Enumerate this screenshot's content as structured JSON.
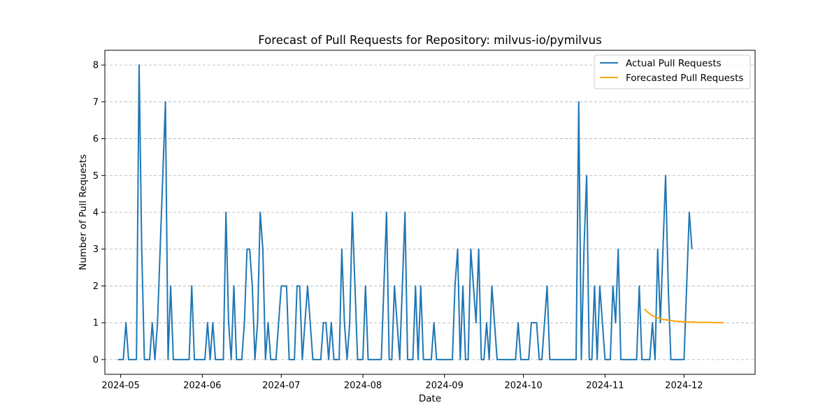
{
  "chart_data": {
    "type": "line",
    "title": "Forecast of Pull Requests for Repository: milvus-io/pymilvus",
    "xlabel": "Date",
    "ylabel": "Number of Pull Requests",
    "x_range": [
      "2024-04-25",
      "2024-12-28"
    ],
    "ylim": [
      -0.4,
      8.4
    ],
    "x_ticks": [
      "2024-05-01",
      "2024-06-01",
      "2024-07-01",
      "2024-08-01",
      "2024-09-01",
      "2024-10-01",
      "2024-11-01",
      "2024-12-01"
    ],
    "x_tick_labels": [
      "2024-05",
      "2024-06",
      "2024-07",
      "2024-08",
      "2024-09",
      "2024-10",
      "2024-11",
      "2024-12"
    ],
    "y_ticks": [
      0,
      1,
      2,
      3,
      4,
      5,
      6,
      7,
      8
    ],
    "grid": "y-dashed",
    "legend_position": "top-right",
    "series": [
      {
        "name": "Actual Pull Requests",
        "color": "#1f77b4",
        "points": [
          [
            "2024-04-30",
            0
          ],
          [
            "2024-05-01",
            0
          ],
          [
            "2024-05-02",
            0
          ],
          [
            "2024-05-03",
            1
          ],
          [
            "2024-05-04",
            0
          ],
          [
            "2024-05-05",
            0
          ],
          [
            "2024-05-06",
            0
          ],
          [
            "2024-05-07",
            0
          ],
          [
            "2024-05-08",
            8
          ],
          [
            "2024-05-09",
            3
          ],
          [
            "2024-05-10",
            0
          ],
          [
            "2024-05-11",
            0
          ],
          [
            "2024-05-12",
            0
          ],
          [
            "2024-05-13",
            1
          ],
          [
            "2024-05-14",
            0
          ],
          [
            "2024-05-15",
            1
          ],
          [
            "2024-05-16",
            3
          ],
          [
            "2024-05-17",
            5
          ],
          [
            "2024-05-18",
            7
          ],
          [
            "2024-05-19",
            0
          ],
          [
            "2024-05-20",
            2
          ],
          [
            "2024-05-21",
            0
          ],
          [
            "2024-05-22",
            0
          ],
          [
            "2024-05-23",
            0
          ],
          [
            "2024-05-24",
            0
          ],
          [
            "2024-05-25",
            0
          ],
          [
            "2024-05-26",
            0
          ],
          [
            "2024-05-27",
            0
          ],
          [
            "2024-05-28",
            2
          ],
          [
            "2024-05-29",
            0
          ],
          [
            "2024-05-30",
            0
          ],
          [
            "2024-05-31",
            0
          ],
          [
            "2024-06-01",
            0
          ],
          [
            "2024-06-02",
            0
          ],
          [
            "2024-06-03",
            1
          ],
          [
            "2024-06-04",
            0
          ],
          [
            "2024-06-05",
            1
          ],
          [
            "2024-06-06",
            0
          ],
          [
            "2024-06-07",
            0
          ],
          [
            "2024-06-08",
            0
          ],
          [
            "2024-06-09",
            0
          ],
          [
            "2024-06-10",
            4
          ],
          [
            "2024-06-11",
            1
          ],
          [
            "2024-06-12",
            0
          ],
          [
            "2024-06-13",
            2
          ],
          [
            "2024-06-14",
            0
          ],
          [
            "2024-06-15",
            0
          ],
          [
            "2024-06-16",
            0
          ],
          [
            "2024-06-17",
            1
          ],
          [
            "2024-06-18",
            3
          ],
          [
            "2024-06-19",
            3
          ],
          [
            "2024-06-20",
            2
          ],
          [
            "2024-06-21",
            0
          ],
          [
            "2024-06-22",
            1
          ],
          [
            "2024-06-23",
            4
          ],
          [
            "2024-06-24",
            3
          ],
          [
            "2024-06-25",
            0
          ],
          [
            "2024-06-26",
            1
          ],
          [
            "2024-06-27",
            0
          ],
          [
            "2024-06-28",
            0
          ],
          [
            "2024-06-29",
            0
          ],
          [
            "2024-06-30",
            1
          ],
          [
            "2024-07-01",
            2
          ],
          [
            "2024-07-02",
            2
          ],
          [
            "2024-07-03",
            2
          ],
          [
            "2024-07-04",
            0
          ],
          [
            "2024-07-05",
            0
          ],
          [
            "2024-07-06",
            0
          ],
          [
            "2024-07-07",
            2
          ],
          [
            "2024-07-08",
            2
          ],
          [
            "2024-07-09",
            0
          ],
          [
            "2024-07-10",
            1
          ],
          [
            "2024-07-11",
            2
          ],
          [
            "2024-07-12",
            1
          ],
          [
            "2024-07-13",
            0
          ],
          [
            "2024-07-14",
            0
          ],
          [
            "2024-07-15",
            0
          ],
          [
            "2024-07-16",
            0
          ],
          [
            "2024-07-17",
            1
          ],
          [
            "2024-07-18",
            1
          ],
          [
            "2024-07-19",
            0
          ],
          [
            "2024-07-20",
            1
          ],
          [
            "2024-07-21",
            0
          ],
          [
            "2024-07-22",
            0
          ],
          [
            "2024-07-23",
            0
          ],
          [
            "2024-07-24",
            3
          ],
          [
            "2024-07-25",
            1
          ],
          [
            "2024-07-26",
            0
          ],
          [
            "2024-07-27",
            1
          ],
          [
            "2024-07-28",
            4
          ],
          [
            "2024-07-29",
            2
          ],
          [
            "2024-07-30",
            0
          ],
          [
            "2024-07-31",
            0
          ],
          [
            "2024-08-01",
            0
          ],
          [
            "2024-08-02",
            2
          ],
          [
            "2024-08-03",
            0
          ],
          [
            "2024-08-04",
            0
          ],
          [
            "2024-08-05",
            0
          ],
          [
            "2024-08-06",
            0
          ],
          [
            "2024-08-07",
            0
          ],
          [
            "2024-08-08",
            0
          ],
          [
            "2024-08-09",
            2
          ],
          [
            "2024-08-10",
            4
          ],
          [
            "2024-08-11",
            0
          ],
          [
            "2024-08-12",
            0
          ],
          [
            "2024-08-13",
            2
          ],
          [
            "2024-08-14",
            1
          ],
          [
            "2024-08-15",
            0
          ],
          [
            "2024-08-16",
            2
          ],
          [
            "2024-08-17",
            4
          ],
          [
            "2024-08-18",
            0
          ],
          [
            "2024-08-19",
            0
          ],
          [
            "2024-08-20",
            0
          ],
          [
            "2024-08-21",
            2
          ],
          [
            "2024-08-22",
            0
          ],
          [
            "2024-08-23",
            2
          ],
          [
            "2024-08-24",
            0
          ],
          [
            "2024-08-25",
            0
          ],
          [
            "2024-08-26",
            0
          ],
          [
            "2024-08-27",
            0
          ],
          [
            "2024-08-28",
            1
          ],
          [
            "2024-08-29",
            0
          ],
          [
            "2024-08-30",
            0
          ],
          [
            "2024-08-31",
            0
          ],
          [
            "2024-09-01",
            0
          ],
          [
            "2024-09-02",
            0
          ],
          [
            "2024-09-03",
            0
          ],
          [
            "2024-09-04",
            0
          ],
          [
            "2024-09-05",
            2
          ],
          [
            "2024-09-06",
            3
          ],
          [
            "2024-09-07",
            0
          ],
          [
            "2024-09-08",
            2
          ],
          [
            "2024-09-09",
            0
          ],
          [
            "2024-09-10",
            0
          ],
          [
            "2024-09-11",
            3
          ],
          [
            "2024-09-12",
            2
          ],
          [
            "2024-09-13",
            1
          ],
          [
            "2024-09-14",
            3
          ],
          [
            "2024-09-15",
            0
          ],
          [
            "2024-09-16",
            0
          ],
          [
            "2024-09-17",
            1
          ],
          [
            "2024-09-18",
            0
          ],
          [
            "2024-09-19",
            2
          ],
          [
            "2024-09-20",
            1
          ],
          [
            "2024-09-21",
            0
          ],
          [
            "2024-09-22",
            0
          ],
          [
            "2024-09-23",
            0
          ],
          [
            "2024-09-24",
            0
          ],
          [
            "2024-09-25",
            0
          ],
          [
            "2024-09-26",
            0
          ],
          [
            "2024-09-27",
            0
          ],
          [
            "2024-09-28",
            0
          ],
          [
            "2024-09-29",
            1
          ],
          [
            "2024-09-30",
            0
          ],
          [
            "2024-10-01",
            0
          ],
          [
            "2024-10-02",
            0
          ],
          [
            "2024-10-03",
            0
          ],
          [
            "2024-10-04",
            1
          ],
          [
            "2024-10-05",
            1
          ],
          [
            "2024-10-06",
            1
          ],
          [
            "2024-10-07",
            0
          ],
          [
            "2024-10-08",
            0
          ],
          [
            "2024-10-09",
            1
          ],
          [
            "2024-10-10",
            2
          ],
          [
            "2024-10-11",
            0
          ],
          [
            "2024-10-12",
            0
          ],
          [
            "2024-10-13",
            0
          ],
          [
            "2024-10-14",
            0
          ],
          [
            "2024-10-15",
            0
          ],
          [
            "2024-10-16",
            0
          ],
          [
            "2024-10-17",
            0
          ],
          [
            "2024-10-18",
            0
          ],
          [
            "2024-10-19",
            0
          ],
          [
            "2024-10-20",
            0
          ],
          [
            "2024-10-21",
            0
          ],
          [
            "2024-10-22",
            7
          ],
          [
            "2024-10-23",
            0
          ],
          [
            "2024-10-24",
            3
          ],
          [
            "2024-10-25",
            5
          ],
          [
            "2024-10-26",
            0
          ],
          [
            "2024-10-27",
            0
          ],
          [
            "2024-10-28",
            2
          ],
          [
            "2024-10-29",
            0
          ],
          [
            "2024-10-30",
            2
          ],
          [
            "2024-10-31",
            1
          ],
          [
            "2024-11-01",
            0
          ],
          [
            "2024-11-02",
            0
          ],
          [
            "2024-11-03",
            0
          ],
          [
            "2024-11-04",
            2
          ],
          [
            "2024-11-05",
            1
          ],
          [
            "2024-11-06",
            3
          ],
          [
            "2024-11-07",
            0
          ],
          [
            "2024-11-08",
            0
          ],
          [
            "2024-11-09",
            0
          ],
          [
            "2024-11-10",
            0
          ],
          [
            "2024-11-11",
            0
          ],
          [
            "2024-11-12",
            0
          ],
          [
            "2024-11-13",
            0
          ],
          [
            "2024-11-14",
            2
          ],
          [
            "2024-11-15",
            0
          ],
          [
            "2024-11-16",
            0
          ],
          [
            "2024-11-17",
            0
          ],
          [
            "2024-11-18",
            0
          ],
          [
            "2024-11-19",
            1
          ],
          [
            "2024-11-20",
            0
          ],
          [
            "2024-11-21",
            3
          ],
          [
            "2024-11-22",
            1
          ],
          [
            "2024-11-23",
            3
          ],
          [
            "2024-11-24",
            5
          ],
          [
            "2024-11-25",
            2
          ],
          [
            "2024-11-26",
            0
          ],
          [
            "2024-11-27",
            0
          ],
          [
            "2024-11-28",
            0
          ],
          [
            "2024-11-29",
            0
          ],
          [
            "2024-11-30",
            0
          ],
          [
            "2024-12-01",
            0
          ],
          [
            "2024-12-02",
            2
          ],
          [
            "2024-12-03",
            4
          ],
          [
            "2024-12-04",
            3
          ]
        ]
      },
      {
        "name": "Forecasted Pull Requests",
        "color": "#ffa500",
        "points": [
          [
            "2024-11-16",
            1.38
          ],
          [
            "2024-11-17",
            1.3
          ],
          [
            "2024-11-18",
            1.24
          ],
          [
            "2024-11-19",
            1.19
          ],
          [
            "2024-11-20",
            1.16
          ],
          [
            "2024-11-21",
            1.13
          ],
          [
            "2024-11-22",
            1.11
          ],
          [
            "2024-11-23",
            1.09
          ],
          [
            "2024-11-24",
            1.08
          ],
          [
            "2024-11-25",
            1.07
          ],
          [
            "2024-11-26",
            1.06
          ],
          [
            "2024-11-27",
            1.05
          ],
          [
            "2024-11-28",
            1.04
          ],
          [
            "2024-11-29",
            1.04
          ],
          [
            "2024-11-30",
            1.03
          ],
          [
            "2024-12-01",
            1.03
          ],
          [
            "2024-12-02",
            1.02
          ],
          [
            "2024-12-03",
            1.02
          ],
          [
            "2024-12-04",
            1.02
          ],
          [
            "2024-12-05",
            1.02
          ],
          [
            "2024-12-06",
            1.01
          ],
          [
            "2024-12-07",
            1.01
          ],
          [
            "2024-12-08",
            1.01
          ],
          [
            "2024-12-09",
            1.01
          ],
          [
            "2024-12-10",
            1.01
          ],
          [
            "2024-12-11",
            1.01
          ],
          [
            "2024-12-12",
            1.0
          ],
          [
            "2024-12-13",
            1.0
          ],
          [
            "2024-12-14",
            1.0
          ],
          [
            "2024-12-15",
            1.0
          ],
          [
            "2024-12-16",
            1.0
          ]
        ]
      }
    ]
  }
}
